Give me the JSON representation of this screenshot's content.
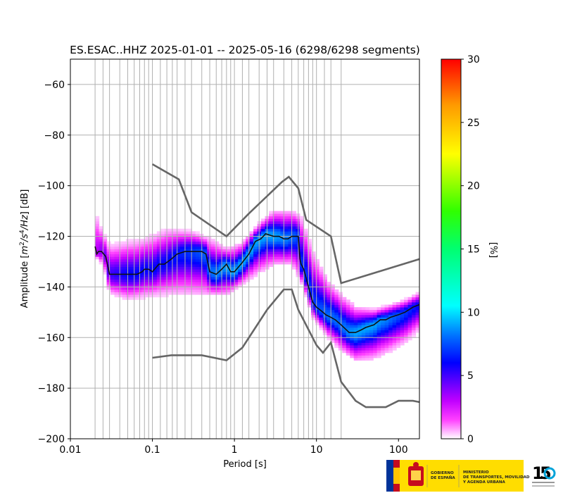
{
  "chart_data": {
    "type": "heatmap",
    "title": "ES.ESAC..HHZ   2025-01-01 -- 2025-05-16  (6298/6298 segments)",
    "xlabel": "Period [s]",
    "ylabel_parts": [
      "Amplitude [",
      "m",
      "2",
      "/",
      "s",
      "4",
      "/",
      "Hz",
      "] [dB]"
    ],
    "x_scale": "log",
    "xlim": [
      0.01,
      180
    ],
    "ylim": [
      -200,
      -50
    ],
    "x_ticks": [
      0.01,
      0.1,
      1,
      10,
      100
    ],
    "x_tick_labels": [
      "0.01",
      "0.1",
      "1",
      "10",
      "100"
    ],
    "y_ticks": [
      -200,
      -180,
      -160,
      -140,
      -120,
      -100,
      -80,
      -60
    ],
    "y_tick_labels": [
      "−200",
      "−180",
      "−160",
      "−140",
      "−120",
      "−100",
      "−80",
      "−60"
    ],
    "grid": true,
    "colorbar": {
      "label": "[%]",
      "range": [
        0,
        30
      ],
      "ticks": [
        0,
        5,
        10,
        15,
        20,
        25,
        30
      ],
      "tick_labels": [
        "0",
        "5",
        "10",
        "15",
        "20",
        "25",
        "30"
      ]
    },
    "period_grid_lines": [
      0.02,
      0.025,
      0.03,
      0.04,
      0.05,
      0.06,
      0.07,
      0.08,
      0.09,
      0.1,
      0.125,
      0.15,
      0.175,
      0.2,
      0.25,
      0.3,
      0.4,
      0.5,
      0.6,
      0.7,
      0.8,
      0.9,
      1,
      1.25,
      1.5,
      2,
      2.5,
      3,
      4,
      5,
      6,
      7,
      8,
      9,
      10,
      12.5,
      15,
      20
    ],
    "density_band": [
      {
        "period": 0.02,
        "upper": -108,
        "lower": -128,
        "peak": 3
      },
      {
        "period": 0.025,
        "upper": -118,
        "lower": -132,
        "peak": 4
      },
      {
        "period": 0.03,
        "upper": -123,
        "lower": -143,
        "peak": 5
      },
      {
        "period": 0.05,
        "upper": -122,
        "lower": -145,
        "peak": 6
      },
      {
        "period": 0.08,
        "upper": -121,
        "lower": -144,
        "peak": 6
      },
      {
        "period": 0.15,
        "upper": -117,
        "lower": -143,
        "peak": 6
      },
      {
        "period": 0.3,
        "upper": -118,
        "lower": -143,
        "peak": 7
      },
      {
        "period": 0.5,
        "upper": -121,
        "lower": -143,
        "peak": 8
      },
      {
        "period": 0.8,
        "upper": -125,
        "lower": -143,
        "peak": 9
      },
      {
        "period": 1.2,
        "upper": -123,
        "lower": -139,
        "peak": 9
      },
      {
        "period": 2,
        "upper": -115,
        "lower": -134,
        "peak": 9
      },
      {
        "period": 3,
        "upper": -110,
        "lower": -131,
        "peak": 9
      },
      {
        "period": 5,
        "upper": -110,
        "lower": -131,
        "peak": 8
      },
      {
        "period": 6.5,
        "upper": -112,
        "lower": -138,
        "peak": 7
      },
      {
        "period": 9,
        "upper": -126,
        "lower": -152,
        "peak": 7
      },
      {
        "period": 14,
        "upper": -138,
        "lower": -160,
        "peak": 8
      },
      {
        "period": 20,
        "upper": -143,
        "lower": -165,
        "peak": 8
      },
      {
        "period": 30,
        "upper": -148,
        "lower": -169,
        "peak": 9
      },
      {
        "period": 50,
        "upper": -149,
        "lower": -168,
        "peak": 9
      },
      {
        "period": 80,
        "upper": -147,
        "lower": -165,
        "peak": 8
      },
      {
        "period": 120,
        "upper": -145,
        "lower": -162,
        "peak": 7
      },
      {
        "period": 180,
        "upper": -142,
        "lower": -157,
        "peak": 6
      }
    ],
    "series": [
      {
        "x": [
          0.02,
          0.021,
          0.022,
          0.024,
          0.027,
          0.03,
          0.035,
          0.045,
          0.055,
          0.065,
          0.075,
          0.08,
          0.09,
          0.1,
          0.12,
          0.14,
          0.17,
          0.2,
          0.25,
          0.3,
          0.35,
          0.4,
          0.45,
          0.5,
          0.6,
          0.7,
          0.8,
          0.9,
          1,
          1.2,
          1.5,
          1.8,
          2.1,
          2.4,
          3,
          3.5,
          4,
          4.5,
          5,
          5.5,
          6,
          6.3,
          6.5,
          7,
          8,
          9,
          10,
          11,
          12,
          13,
          15,
          17,
          20,
          25,
          30,
          35,
          40,
          50,
          60,
          70,
          80,
          100,
          120,
          150,
          180
        ],
        "y": [
          -124,
          -127,
          -126,
          -126,
          -128,
          -135,
          -135,
          -135,
          -135,
          -135,
          -134,
          -133,
          -133,
          -134,
          -131,
          -131,
          -129,
          -127,
          -126,
          -126,
          -126,
          -126,
          -127,
          -134,
          -135,
          -133,
          -131,
          -134,
          -134,
          -131,
          -127,
          -122,
          -121,
          -119,
          -120,
          -120,
          -121,
          -121,
          -120,
          -120,
          -120,
          -129,
          -131,
          -133,
          -140,
          -146,
          -148,
          -149,
          -150,
          -151,
          -152,
          -153,
          -155,
          -158,
          -158,
          -157,
          -156,
          -155,
          -153,
          -153,
          -152,
          -151,
          -150,
          -148,
          -147
        ]
      },
      {
        "x": [
          0.1,
          0.21,
          0.3,
          0.8,
          1.5,
          3.8,
          4.6,
          6,
          7.5,
          15,
          20,
          180
        ],
        "y": [
          -91.5,
          -97.5,
          -110.5,
          -120,
          -111,
          -98.5,
          -96.5,
          -101,
          -113.5,
          -120,
          -138.5,
          -129
        ]
      },
      {
        "x": [
          0.1,
          0.17,
          0.4,
          0.8,
          1.25,
          2.5,
          4,
          5,
          6,
          10,
          12,
          15,
          20,
          30,
          40,
          70,
          100,
          150,
          180
        ],
        "y": [
          -168,
          -167,
          -167,
          -169,
          -164,
          -149,
          -141,
          -141,
          -149,
          -163,
          -166,
          -162,
          -177.5,
          -185,
          -187.5,
          -187.5,
          -185,
          -185,
          -185.5
        ]
      }
    ]
  }
}
